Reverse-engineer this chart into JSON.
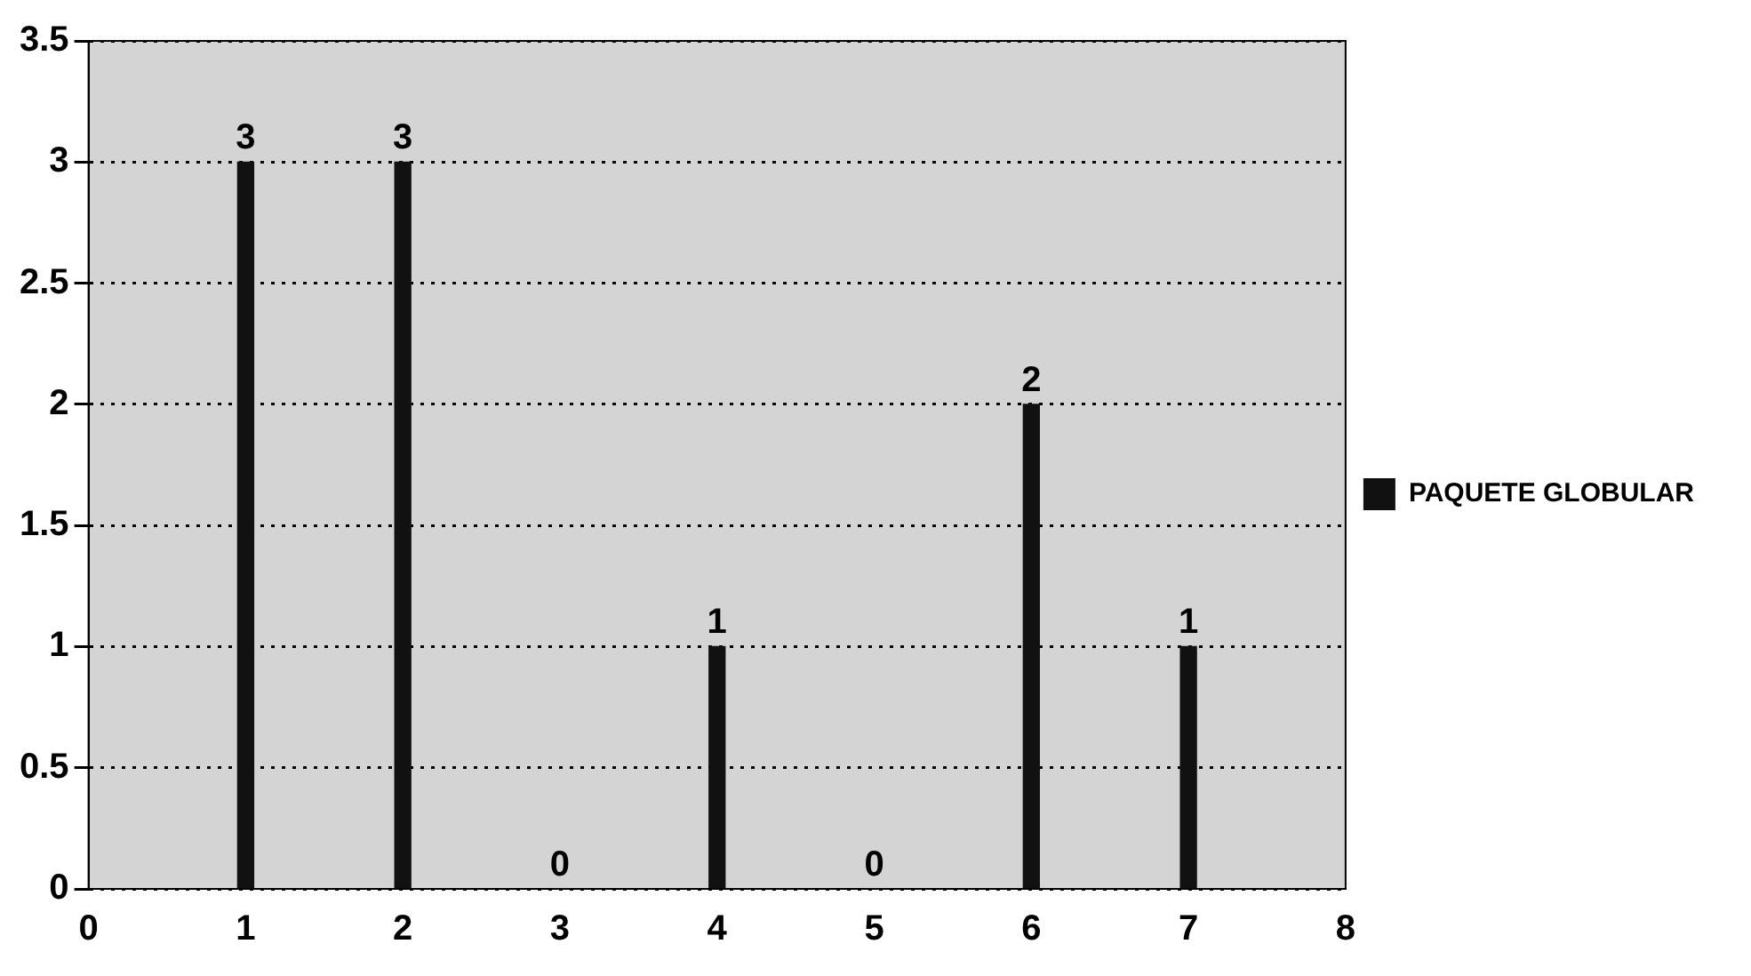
{
  "chart_data": {
    "type": "bar",
    "x": [
      1,
      2,
      3,
      4,
      5,
      6,
      7
    ],
    "series": [
      {
        "name": "PAQUETE GLOBULAR",
        "color": "#111111",
        "values": [
          3,
          3,
          0,
          1,
          0,
          2,
          1
        ]
      }
    ],
    "xlim": [
      0,
      8
    ],
    "xticks": [
      0,
      1,
      2,
      3,
      4,
      5,
      6,
      7,
      8
    ],
    "ylim": [
      0,
      3.5
    ],
    "yticks": [
      0,
      0.5,
      1,
      1.5,
      2,
      2.5,
      3,
      3.5
    ],
    "grid": "y",
    "legend": "right",
    "data_labels": true
  }
}
